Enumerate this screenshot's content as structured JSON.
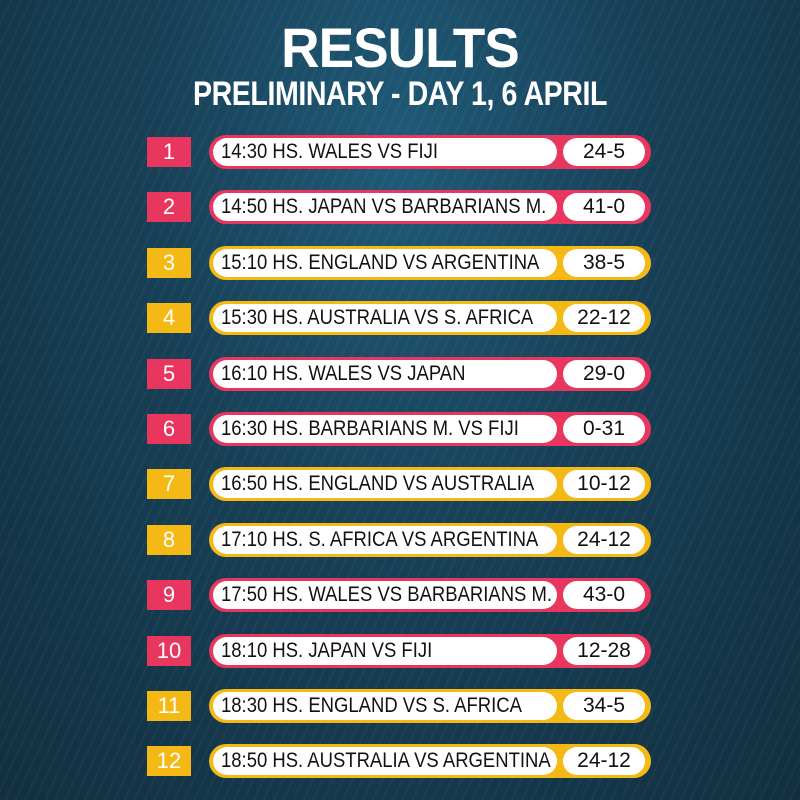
{
  "header": {
    "title": "RESULTS",
    "subtitle": "PRELIMINARY - DAY 1, 6 APRIL"
  },
  "colors": {
    "pink": "#e8365f",
    "yellow": "#f5b915",
    "background": "#173f55"
  },
  "matches": [
    {
      "number": "1",
      "match": "14:30 HS. WALES VS FIJI",
      "score": "24-5",
      "color": "pink"
    },
    {
      "number": "2",
      "match": "14:50 HS. JAPAN VS BARBARIANS M.",
      "score": "41-0",
      "color": "pink"
    },
    {
      "number": "3",
      "match": "15:10 HS. ENGLAND VS ARGENTINA",
      "score": "38-5",
      "color": "yellow"
    },
    {
      "number": "4",
      "match": "15:30 HS. AUSTRALIA VS S. AFRICA",
      "score": "22-12",
      "color": "yellow"
    },
    {
      "number": "5",
      "match": "16:10 HS. WALES VS JAPAN",
      "score": "29-0",
      "color": "pink"
    },
    {
      "number": "6",
      "match": "16:30 HS. BARBARIANS M. VS FIJI",
      "score": "0-31",
      "color": "pink"
    },
    {
      "number": "7",
      "match": "16:50 HS. ENGLAND VS AUSTRALIA",
      "score": "10-12",
      "color": "yellow"
    },
    {
      "number": "8",
      "match": "17:10 HS. S. AFRICA VS ARGENTINA",
      "score": "24-12",
      "color": "yellow"
    },
    {
      "number": "9",
      "match": "17:50 HS. WALES VS BARBARIANS M.",
      "score": "43-0",
      "color": "pink"
    },
    {
      "number": "10",
      "match": "18:10 HS. JAPAN VS FIJI",
      "score": "12-28",
      "color": "pink"
    },
    {
      "number": "11",
      "match": "18:30 HS. ENGLAND VS S. AFRICA",
      "score": "34-5",
      "color": "yellow"
    },
    {
      "number": "12",
      "match": "18:50 HS. AUSTRALIA VS ARGENTINA",
      "score": "24-12",
      "color": "yellow"
    }
  ]
}
